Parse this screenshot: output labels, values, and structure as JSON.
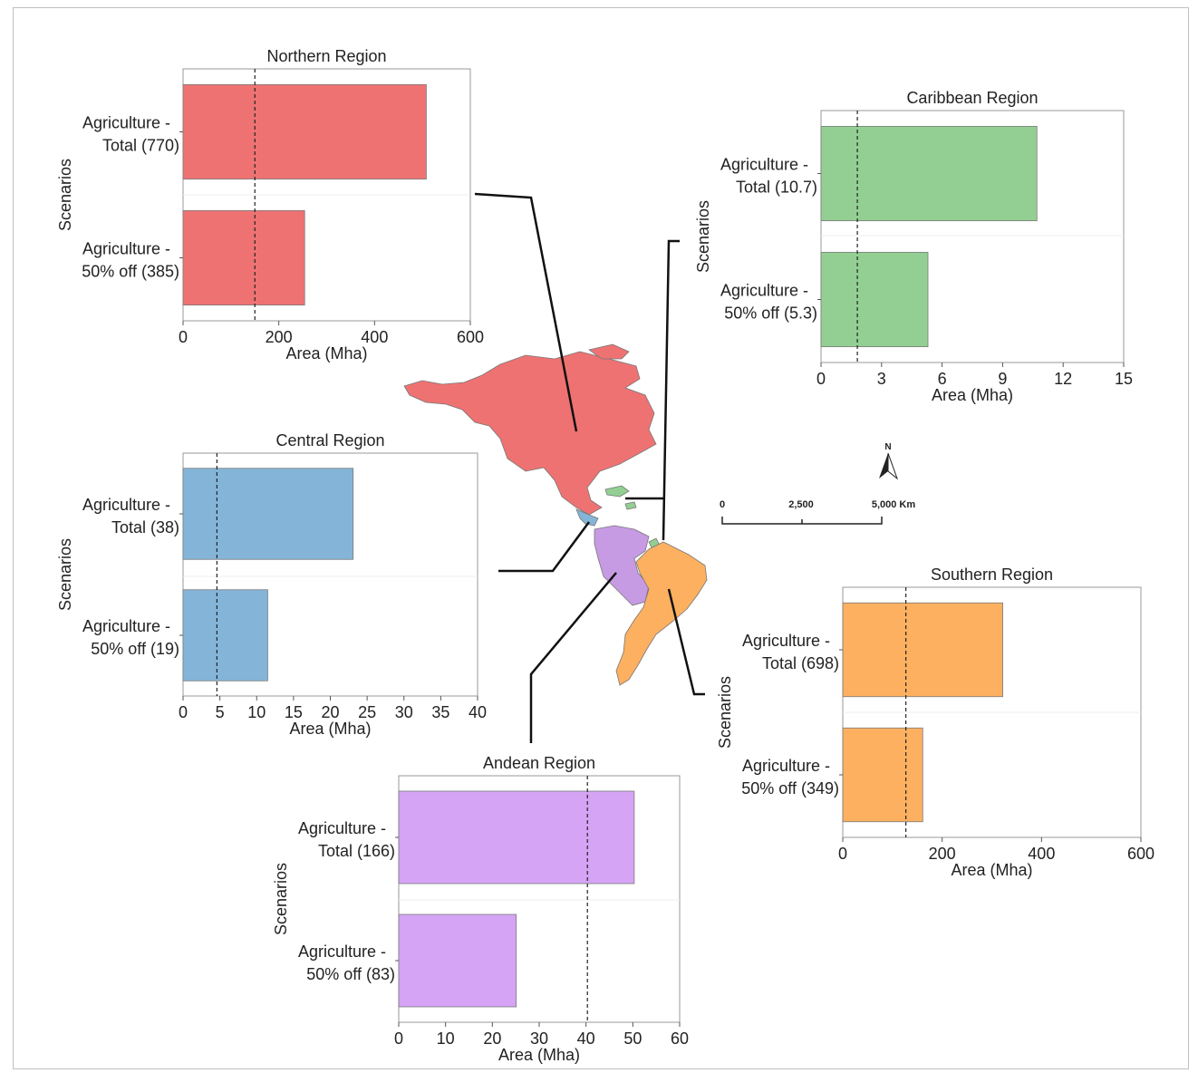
{
  "chart_data": [
    {
      "type": "bar",
      "orientation": "horizontal",
      "title": "Northern Region",
      "xlabel": "Area (Mha)",
      "ylabel": "Scenarios",
      "categories": [
        "Agriculture - Total (770)",
        "Agriculture - 50% off (385)"
      ],
      "category_lines": [
        [
          "Agriculture -",
          "Total (770)"
        ],
        [
          "Agriculture -",
          "50% off (385)"
        ]
      ],
      "values": [
        508,
        254
      ],
      "xlim": [
        0,
        600
      ],
      "xticks": [
        0,
        200,
        400,
        600
      ],
      "xtick_labels": [
        "0",
        "200",
        "400",
        "600"
      ],
      "reference_line": 150,
      "color": "#ef7272"
    },
    {
      "type": "bar",
      "orientation": "horizontal",
      "title": "Caribbean Region",
      "xlabel": "Area (Mha)",
      "ylabel": "Scenarios",
      "categories": [
        "Agriculture - Total (10.7)",
        "Agriculture - 50% off (5.3)"
      ],
      "category_lines": [
        [
          "Agriculture -",
          "Total (10.7)"
        ],
        [
          "Agriculture -",
          "50% off (5.3)"
        ]
      ],
      "values": [
        10.7,
        5.3
      ],
      "xlim": [
        0,
        15
      ],
      "xticks": [
        0,
        3,
        6,
        9,
        12,
        15
      ],
      "xtick_labels": [
        "0",
        "3",
        "6",
        "9",
        "12",
        "15"
      ],
      "reference_line": 1.8,
      "color": "#93cf93"
    },
    {
      "type": "bar",
      "orientation": "horizontal",
      "title": "Central Region",
      "xlabel": "Area (Mha)",
      "ylabel": "Scenarios",
      "categories": [
        "Agriculture - Total (38)",
        "Agriculture - 50% off (19)"
      ],
      "category_lines": [
        [
          "Agriculture -",
          "Total (38)"
        ],
        [
          "Agriculture -",
          "50% off (19)"
        ]
      ],
      "values": [
        23.1,
        11.5
      ],
      "xlim": [
        0,
        40
      ],
      "xticks": [
        0,
        5,
        10,
        15,
        20,
        25,
        30,
        35,
        40
      ],
      "xtick_labels": [
        "0",
        "5",
        "10",
        "15",
        "20",
        "25",
        "30",
        "35",
        "40"
      ],
      "reference_line": 4.6,
      "color": "#84b5d8"
    },
    {
      "type": "bar",
      "orientation": "horizontal",
      "title": "Southern Region",
      "xlabel": "Area (Mha)",
      "ylabel": "Scenarios",
      "categories": [
        "Agriculture - Total (698)",
        "Agriculture - 50% off (349)"
      ],
      "category_lines": [
        [
          "Agriculture -",
          "Total (698)"
        ],
        [
          "Agriculture -",
          "50% off (349)"
        ]
      ],
      "values": [
        322,
        161
      ],
      "xlim": [
        0,
        600
      ],
      "xticks": [
        0,
        200,
        400,
        600
      ],
      "xtick_labels": [
        "0",
        "200",
        "400",
        "600"
      ],
      "reference_line": 127,
      "color": "#fcb060"
    },
    {
      "type": "bar",
      "orientation": "horizontal",
      "title": "Andean Region",
      "xlabel": "Area (Mha)",
      "ylabel": "Scenarios",
      "categories": [
        "Agriculture - Total (166)",
        "Agriculture - 50% off (83)"
      ],
      "category_lines": [
        [
          "Agriculture -",
          "Total (166)"
        ],
        [
          "Agriculture -",
          "50% off (83)"
        ]
      ],
      "values": [
        50.3,
        25.1
      ],
      "xlim": [
        0,
        60
      ],
      "xticks": [
        0,
        10,
        20,
        30,
        40,
        50,
        60
      ],
      "xtick_labels": [
        "0",
        "10",
        "20",
        "30",
        "40",
        "50",
        "60"
      ],
      "reference_line": 40.3,
      "color": "#d5a4f5"
    }
  ],
  "map": {
    "north_arrow_label": "N",
    "scale_bar_labels": [
      "0",
      "2,500",
      "5,000 Km"
    ],
    "region_colors": {
      "northern": "#ef7272",
      "caribbean": "#93cf93",
      "central": "#84b5d8",
      "andean": "#c79be3",
      "southern": "#fcb060"
    }
  }
}
